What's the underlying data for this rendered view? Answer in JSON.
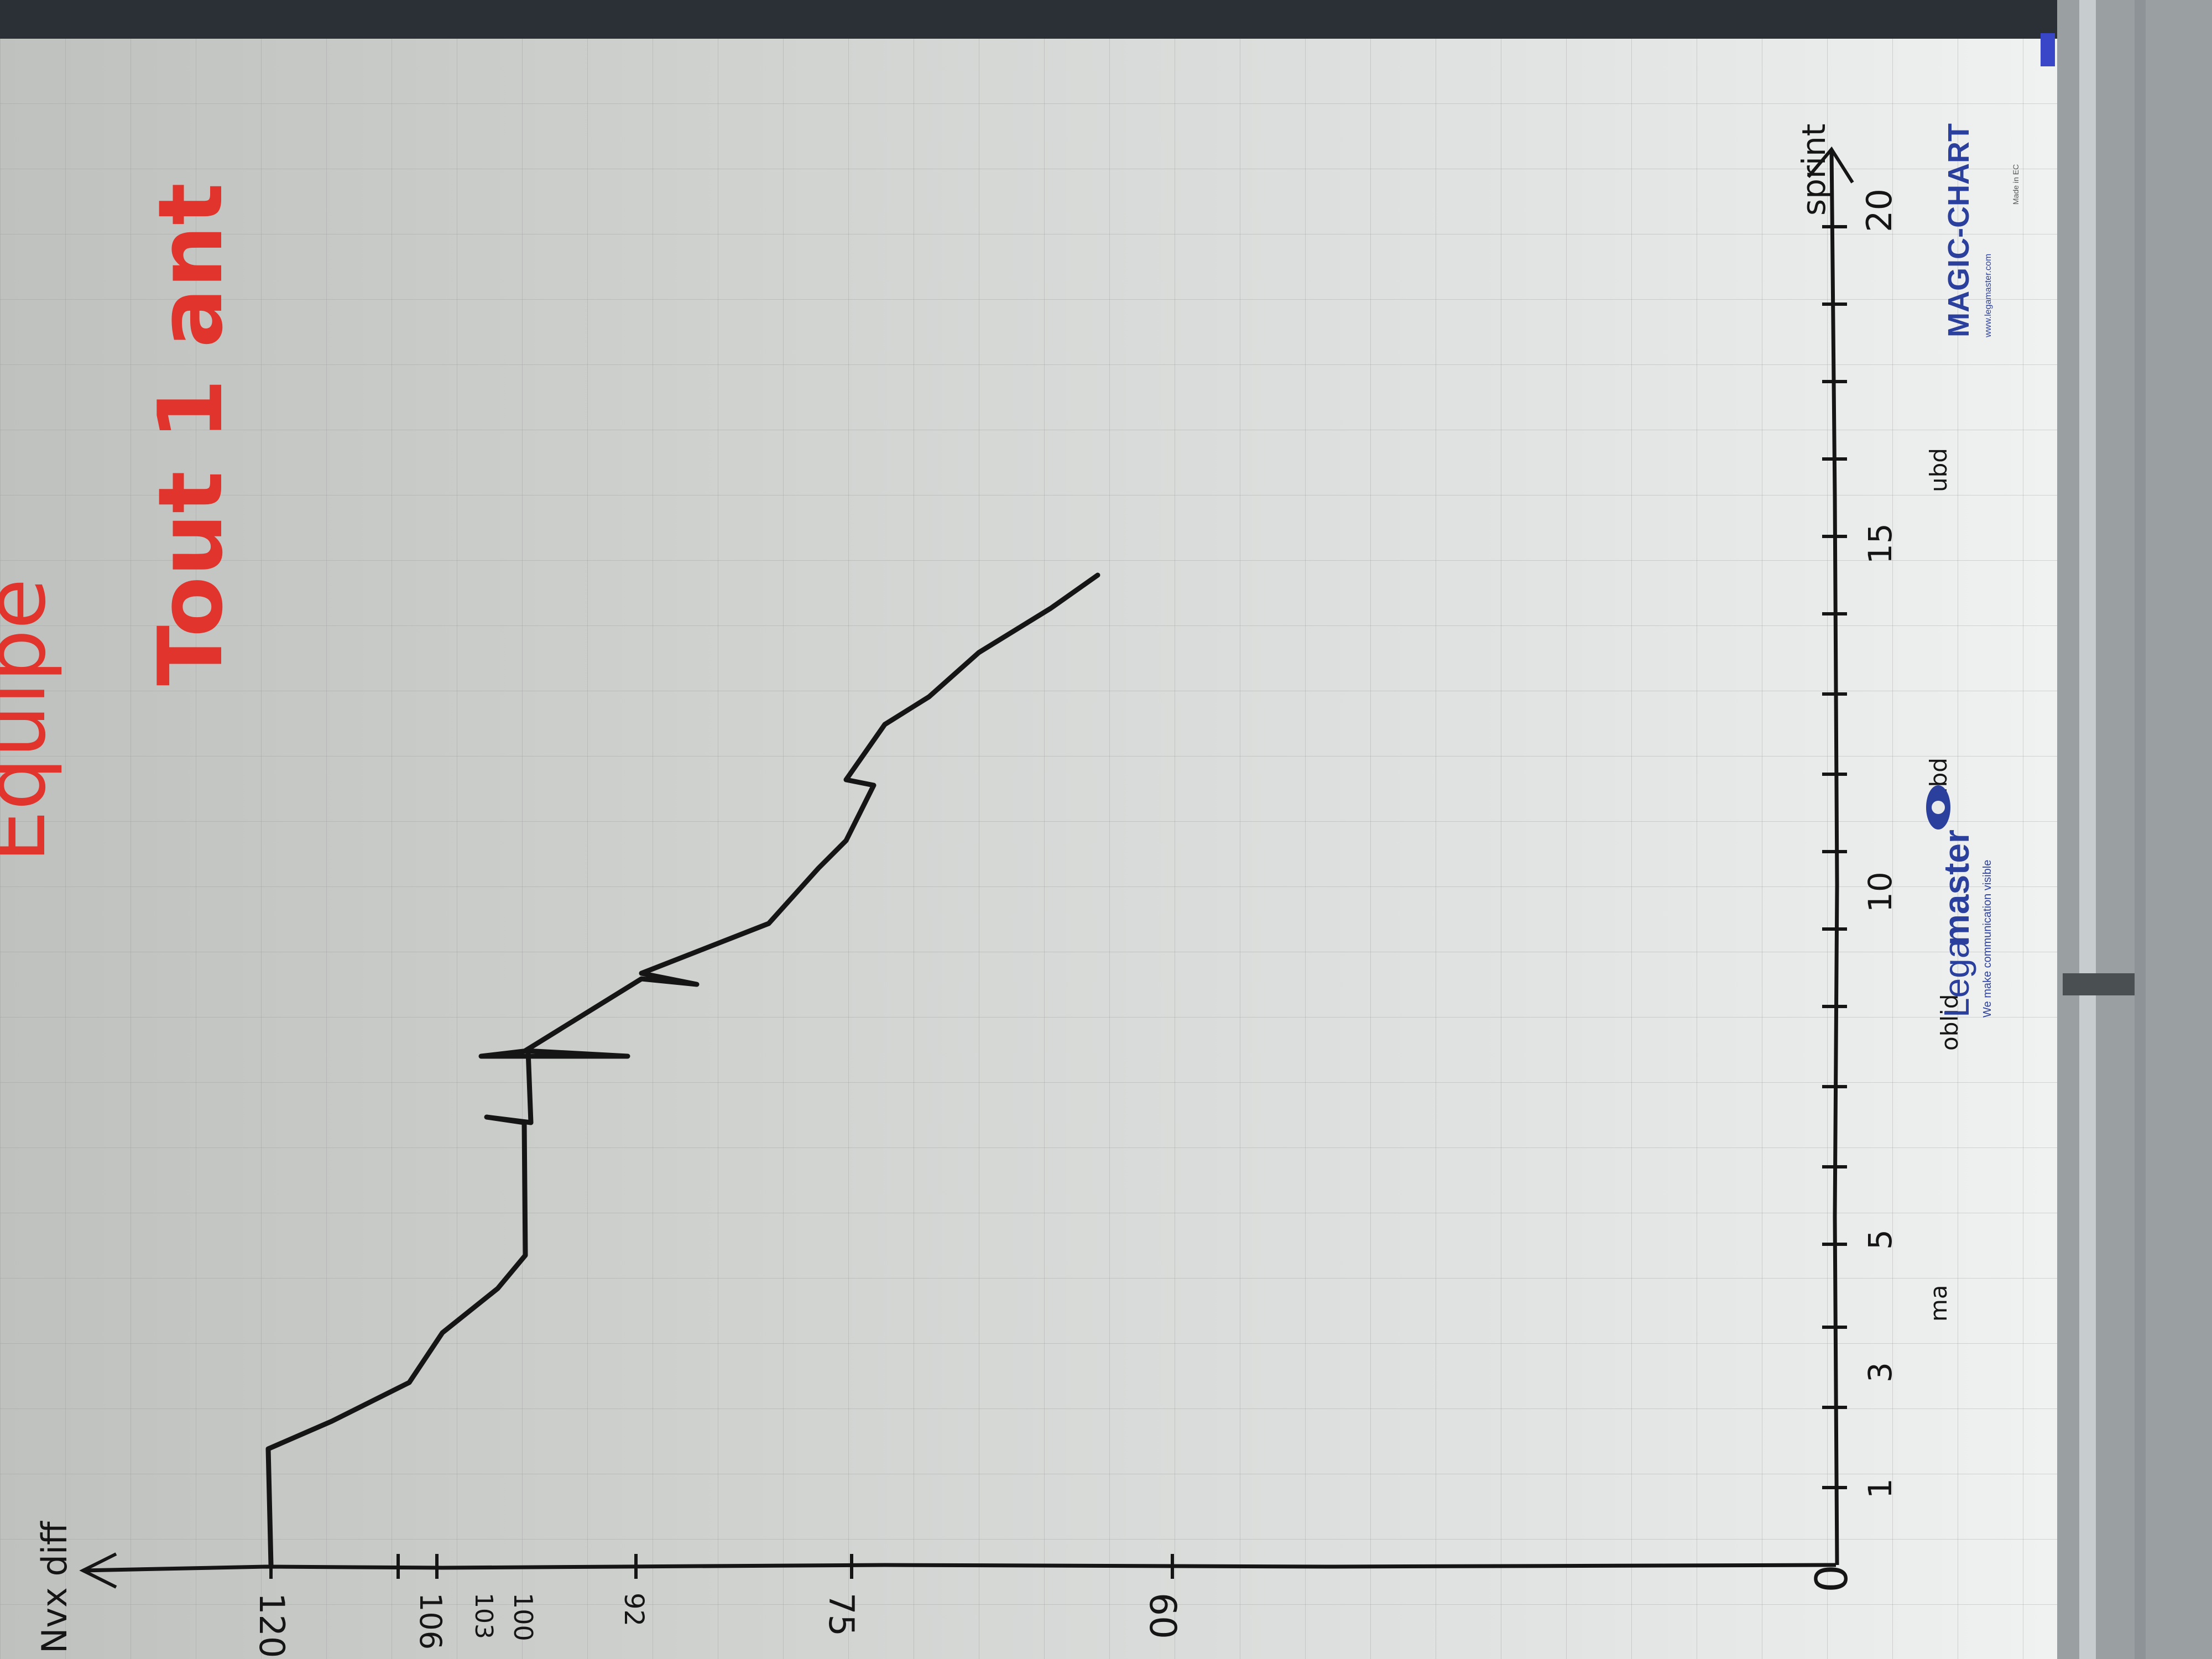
{
  "title_line1": "Equipe",
  "title_line2": "Tout 1 ant",
  "y_axis_label": "Nvx diff",
  "y_ticks": [
    "120",
    "106",
    "103",
    "100",
    "92",
    "75",
    "60"
  ],
  "x_ticks": [
    "0",
    "1",
    "3",
    "5",
    "10",
    "15"
  ],
  "x_axis_label": "sprint",
  "x_axis_label_2": "20",
  "annotations": [
    "ma",
    "oblid",
    "ubd",
    "ubd"
  ],
  "brand": {
    "name_prefix": "Lega",
    "name_suffix": "master",
    "tagline": "We make communication visible",
    "product": "MAGIC-CHART",
    "url": "www.legamaster.com",
    "corner_text": "Made in EC"
  },
  "colors": {
    "ink_black": "#151515",
    "ink_red": "#e0342c",
    "brand_blue": "#2b3f9c"
  }
}
